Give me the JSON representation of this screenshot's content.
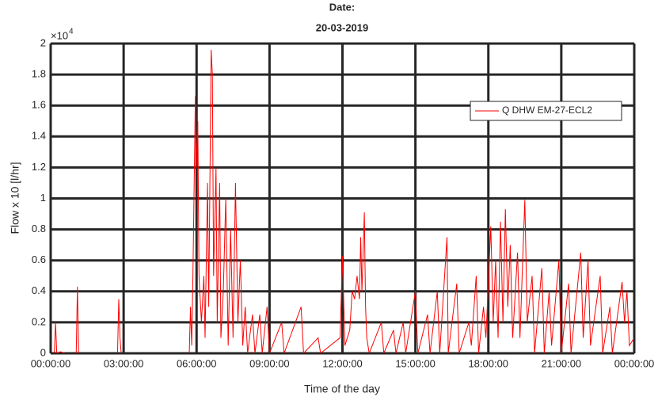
{
  "chart_data": {
    "type": "line",
    "title": [
      "Date:",
      "20-03-2019"
    ],
    "xlabel": "Time of the day",
    "ylabel": "Flow x 10 [l/hr]",
    "y_exponent": {
      "base": "×10",
      "power": "4"
    },
    "x": [
      0,
      0.15,
      0.2,
      0.25,
      0.4,
      0.6,
      0.7,
      1.05,
      1.1,
      1.15,
      2.5,
      2.75,
      2.8,
      2.85,
      2.9,
      5.7,
      5.75,
      5.8,
      5.85,
      5.95,
      6.0,
      6.05,
      6.1,
      6.2,
      6.3,
      6.35,
      6.45,
      6.5,
      6.6,
      6.65,
      6.7,
      6.8,
      6.85,
      6.95,
      7.0,
      7.1,
      7.2,
      7.3,
      7.4,
      7.5,
      7.6,
      7.7,
      7.8,
      7.9,
      8.0,
      8.1,
      8.3,
      8.4,
      8.6,
      8.7,
      8.9,
      9.0,
      9.5,
      9.6,
      10.3,
      10.4,
      11.0,
      11.1,
      11.9,
      12.0,
      12.1,
      12.3,
      12.4,
      12.5,
      12.6,
      12.7,
      12.75,
      12.8,
      12.9,
      12.95,
      13.0,
      13.1,
      13.6,
      13.7,
      14.1,
      14.2,
      14.5,
      14.6,
      15.0,
      15.1,
      15.5,
      15.6,
      15.9,
      16.0,
      16.3,
      16.35,
      16.7,
      16.8,
      17.2,
      17.3,
      17.5,
      17.6,
      17.8,
      17.9,
      18.1,
      18.2,
      18.3,
      18.4,
      18.5,
      18.6,
      18.7,
      18.8,
      18.9,
      19.0,
      19.2,
      19.3,
      19.5,
      19.6,
      19.8,
      19.9,
      20.2,
      20.3,
      20.5,
      20.6,
      20.9,
      21.0,
      21.3,
      21.4,
      21.8,
      21.9,
      22.1,
      22.2,
      22.6,
      22.7,
      23.0,
      23.1,
      23.5,
      23.6,
      23.7,
      23.8,
      24.0
    ],
    "series": [
      {
        "name": "Q DHW EM-27-ECL2",
        "color": "#ff0000",
        "values": [
          0,
          0,
          0.2,
          0,
          0.01,
          0,
          0,
          0,
          0.43,
          0,
          0,
          0,
          0.35,
          0.1,
          0,
          0,
          0.3,
          0.05,
          0.5,
          1.66,
          1.2,
          1.5,
          0.5,
          0.2,
          0.5,
          0.1,
          1.1,
          0.3,
          1.96,
          1.8,
          0.5,
          1.2,
          0.2,
          1.1,
          0.1,
          0.4,
          1.0,
          0.05,
          0.8,
          0.1,
          1.1,
          0.2,
          0.6,
          0.05,
          0.3,
          0,
          0.25,
          0,
          0.25,
          0,
          0.3,
          0,
          0.2,
          0,
          0.3,
          0,
          0.1,
          0,
          0.1,
          0.63,
          0.05,
          0.15,
          0.4,
          0.35,
          0.5,
          0.35,
          0.75,
          0.4,
          0.91,
          0.3,
          0.1,
          0,
          0.2,
          0,
          0.15,
          0,
          0.2,
          0,
          0.4,
          0,
          0.25,
          0,
          0.4,
          0,
          0.75,
          0,
          0.45,
          0,
          0.2,
          0.05,
          0.5,
          0,
          0.3,
          0.1,
          0.82,
          0.2,
          0.6,
          0.1,
          0.85,
          0.2,
          0.93,
          0.3,
          0.7,
          0.1,
          0.65,
          0.1,
          0.99,
          0.2,
          0.5,
          0,
          0.55,
          0,
          0.4,
          0.05,
          0.6,
          0,
          0.45,
          0,
          0.65,
          0.1,
          0.6,
          0.05,
          0.5,
          0,
          0.3,
          0,
          0.46,
          0.2,
          0.4,
          0.05,
          0.1
        ]
      }
    ],
    "xlim": [
      0,
      24
    ],
    "xticks": [
      {
        "value": 0,
        "label": "00:00:00"
      },
      {
        "value": 3,
        "label": "03:00:00"
      },
      {
        "value": 6,
        "label": "06:00:00"
      },
      {
        "value": 9,
        "label": "09:00:00"
      },
      {
        "value": 12,
        "label": "12:00:00"
      },
      {
        "value": 15,
        "label": "15:00:00"
      },
      {
        "value": 18,
        "label": "18:00:00"
      },
      {
        "value": 21,
        "label": "21:00:00"
      },
      {
        "value": 24,
        "label": "00:00:00"
      }
    ],
    "ylim": [
      0,
      2
    ],
    "yticks": [
      0,
      0.2,
      0.4,
      0.6,
      0.8,
      1,
      1.2,
      1.4,
      1.6,
      1.8,
      2
    ],
    "grid": true,
    "legend": "northeast"
  }
}
